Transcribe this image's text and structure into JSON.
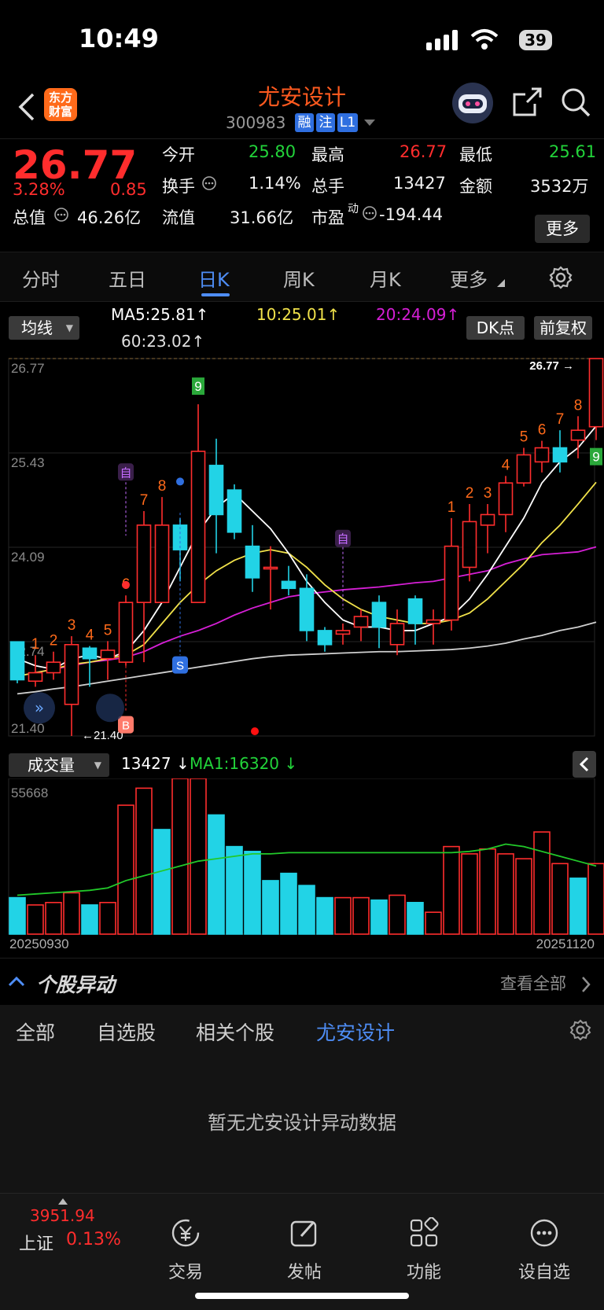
{
  "status_bar": {
    "time": "10:49",
    "battery": "39"
  },
  "header": {
    "title": "尤安设计",
    "code": "300983",
    "tags": [
      "融",
      "注",
      "L1"
    ],
    "brand_logo": "东方财富"
  },
  "quote": {
    "price": "26.77",
    "change_pct": "3.28%",
    "change": "0.85",
    "open_label": "今开",
    "open": "25.80",
    "high_label": "最高",
    "high": "26.77",
    "low_label": "最低",
    "low": "25.61",
    "turnover_label": "换手",
    "turnover": "1.14%",
    "volume_label": "总手",
    "volume": "13427",
    "amount_label": "金额",
    "amount": "3532万",
    "mktcap_label": "总值",
    "mktcap": "46.26亿",
    "float_label": "流值",
    "float_cap": "31.66亿",
    "pe_label": "市盈",
    "pe_sup": "动",
    "pe": "-194.44",
    "more": "更多"
  },
  "tabs": [
    {
      "label": "分时"
    },
    {
      "label": "五日"
    },
    {
      "label": "日K"
    },
    {
      "label": "周K"
    },
    {
      "label": "月K"
    },
    {
      "label": "更多"
    }
  ],
  "active_tab": "日K",
  "ma_bar": {
    "selector": "均线",
    "ma5": "MA5:25.81",
    "ma10": "10:25.01",
    "ma20": "20:24.09",
    "ma60": "60:23.02",
    "dk_button": "DK点",
    "fq_button": "前复权"
  },
  "volume_bar": {
    "selector": "成交量",
    "volume": "13427",
    "ma1": "MA1:16320",
    "start_date": "20250930",
    "end_date": "20251120"
  },
  "yidong": {
    "title": "个股异动",
    "view_all": "查看全部",
    "tabs": [
      "全部",
      "自选股",
      "相关个股",
      "尤安设计"
    ],
    "active": "尤安设计",
    "empty": "暂无尤安设计异动数据"
  },
  "bottom_nav": {
    "index_value": "3951.94",
    "index_name": "上证",
    "index_pct": "0.13%",
    "items": [
      "交易",
      "发帖",
      "功能",
      "设自选"
    ]
  },
  "colors": {
    "up": "#ff2d2d",
    "down": "#22d3e6",
    "accent": "#4e8df5",
    "brand": "#ff5a1f"
  },
  "chart_data": {
    "type": "candlestick",
    "y_ticks": [
      "26.77",
      "25.43",
      "24.09",
      "22.74",
      "21.40"
    ],
    "ylim": [
      21.4,
      26.77
    ],
    "last_price_label": "26.77",
    "low_marker_label": "21.40",
    "candles": [
      {
        "o": 22.74,
        "h": 22.74,
        "l": 22.15,
        "c": 22.2
      },
      {
        "o": 22.18,
        "h": 22.55,
        "l": 22.1,
        "c": 22.3
      },
      {
        "o": 22.3,
        "h": 22.6,
        "l": 22.2,
        "c": 22.45
      },
      {
        "o": 21.85,
        "h": 22.82,
        "l": 21.4,
        "c": 22.7
      },
      {
        "o": 22.65,
        "h": 22.68,
        "l": 22.1,
        "c": 22.5
      },
      {
        "o": 22.5,
        "h": 22.75,
        "l": 22.2,
        "c": 22.62
      },
      {
        "o": 22.45,
        "h": 23.4,
        "l": 22.4,
        "c": 23.3
      },
      {
        "o": 23.3,
        "h": 24.6,
        "l": 22.45,
        "c": 24.4
      },
      {
        "o": 23.3,
        "h": 24.8,
        "l": 23.3,
        "c": 24.4
      },
      {
        "o": 24.4,
        "h": 24.5,
        "l": 23.6,
        "c": 24.05
      },
      {
        "o": 23.3,
        "h": 26.12,
        "l": 23.3,
        "c": 25.45
      },
      {
        "o": 25.25,
        "h": 25.63,
        "l": 24.0,
        "c": 24.55
      },
      {
        "o": 24.9,
        "h": 24.98,
        "l": 24.2,
        "c": 24.3
      },
      {
        "o": 24.1,
        "h": 24.4,
        "l": 23.45,
        "c": 23.65
      },
      {
        "o": 23.78,
        "h": 24.1,
        "l": 23.2,
        "c": 23.8
      },
      {
        "o": 23.6,
        "h": 23.82,
        "l": 23.4,
        "c": 23.5
      },
      {
        "o": 23.5,
        "h": 23.7,
        "l": 22.75,
        "c": 22.9
      },
      {
        "o": 22.9,
        "h": 22.95,
        "l": 22.6,
        "c": 22.7
      },
      {
        "o": 22.85,
        "h": 23.0,
        "l": 22.7,
        "c": 22.9
      },
      {
        "o": 22.95,
        "h": 23.2,
        "l": 22.75,
        "c": 23.1
      },
      {
        "o": 23.3,
        "h": 23.4,
        "l": 22.65,
        "c": 22.95
      },
      {
        "o": 22.7,
        "h": 23.2,
        "l": 22.55,
        "c": 23.0
      },
      {
        "o": 23.35,
        "h": 23.4,
        "l": 22.7,
        "c": 23.0
      },
      {
        "o": 23.0,
        "h": 23.2,
        "l": 22.7,
        "c": 23.05
      },
      {
        "o": 23.05,
        "h": 24.5,
        "l": 22.9,
        "c": 24.1
      },
      {
        "o": 23.8,
        "h": 24.7,
        "l": 23.6,
        "c": 24.45
      },
      {
        "o": 24.4,
        "h": 24.7,
        "l": 24.0,
        "c": 24.55
      },
      {
        "o": 24.55,
        "h": 25.1,
        "l": 24.3,
        "c": 25.0
      },
      {
        "o": 25.0,
        "h": 25.5,
        "l": 24.95,
        "c": 25.4
      },
      {
        "o": 25.3,
        "h": 25.6,
        "l": 25.15,
        "c": 25.5
      },
      {
        "o": 25.5,
        "h": 25.75,
        "l": 25.15,
        "c": 25.3
      },
      {
        "o": 25.61,
        "h": 25.95,
        "l": 25.35,
        "c": 25.75
      },
      {
        "o": 25.8,
        "h": 26.77,
        "l": 25.61,
        "c": 26.77
      }
    ],
    "volumes": [
      15,
      12,
      13,
      17,
      12,
      13,
      53,
      60,
      43,
      64,
      64,
      49,
      36,
      34,
      22,
      25,
      20,
      15,
      15,
      15,
      14,
      16,
      13,
      9,
      36,
      33,
      35,
      33,
      31,
      42,
      29,
      23,
      29
    ],
    "volume_ma": [
      16,
      16.5,
      17,
      17.5,
      18,
      19,
      22,
      24,
      26,
      28,
      30,
      31,
      32,
      33,
      33,
      33.5,
      33.5,
      33.5,
      33.5,
      33.5,
      33.5,
      33.5,
      33.5,
      33.5,
      33.5,
      34,
      35,
      37,
      36,
      34,
      32,
      30,
      28
    ],
    "vol_top_label": "55668",
    "volume_up_flags": [
      0,
      1,
      1,
      1,
      0,
      1,
      1,
      1,
      0,
      1,
      1,
      0,
      0,
      0,
      0,
      0,
      0,
      0,
      1,
      1,
      0,
      1,
      0,
      1,
      1,
      1,
      1,
      1,
      1,
      1,
      1,
      0,
      1
    ],
    "ma5": [
      22.5,
      22.4,
      22.35,
      22.5,
      22.55,
      22.5,
      22.6,
      22.9,
      23.3,
      23.8,
      24.3,
      24.65,
      24.85,
      24.6,
      24.35,
      24.0,
      23.6,
      23.3,
      23.05,
      22.95,
      22.95,
      22.9,
      22.9,
      23.0,
      23.1,
      23.35,
      23.7,
      24.1,
      24.5,
      25.0,
      25.3,
      25.5,
      25.81
    ],
    "ma10": [
      22.25,
      22.3,
      22.35,
      22.42,
      22.45,
      22.5,
      22.55,
      22.7,
      23.0,
      23.3,
      23.55,
      23.75,
      23.9,
      24.0,
      24.05,
      24.0,
      23.8,
      23.55,
      23.35,
      23.2,
      23.1,
      23.05,
      23.0,
      23.0,
      23.05,
      23.15,
      23.35,
      23.6,
      23.85,
      24.15,
      24.4,
      24.7,
      25.01
    ],
    "ma20": [
      22.25,
      22.3,
      22.35,
      22.4,
      22.45,
      22.48,
      22.52,
      22.6,
      22.72,
      22.82,
      22.9,
      23.0,
      23.12,
      23.22,
      23.3,
      23.38,
      23.42,
      23.45,
      23.48,
      23.5,
      23.52,
      23.55,
      23.58,
      23.6,
      23.65,
      23.7,
      23.75,
      23.85,
      23.92,
      23.98,
      24.0,
      24.02,
      24.09
    ],
    "ma60": [
      22.0,
      22.03,
      22.07,
      22.1,
      22.14,
      22.18,
      22.22,
      22.26,
      22.3,
      22.34,
      22.38,
      22.42,
      22.46,
      22.5,
      22.53,
      22.55,
      22.56,
      22.57,
      22.58,
      22.59,
      22.6,
      22.6,
      22.61,
      22.62,
      22.63,
      22.65,
      22.68,
      22.72,
      22.78,
      22.83,
      22.9,
      22.95,
      23.02
    ],
    "nine_turn_labels": [
      {
        "i": 1,
        "t": "1"
      },
      {
        "i": 2,
        "t": "2"
      },
      {
        "i": 3,
        "t": "3"
      },
      {
        "i": 4,
        "t": "4"
      },
      {
        "i": 5,
        "t": "5"
      },
      {
        "i": 6,
        "t": "6"
      },
      {
        "i": 7,
        "t": "7"
      },
      {
        "i": 8,
        "t": "8"
      },
      {
        "i": 10,
        "t": "9",
        "box": true
      },
      {
        "i": 24,
        "t": "1"
      },
      {
        "i": 25,
        "t": "2"
      },
      {
        "i": 26,
        "t": "3"
      },
      {
        "i": 27,
        "t": "4"
      },
      {
        "i": 28,
        "t": "5"
      },
      {
        "i": 29,
        "t": "6"
      },
      {
        "i": 30,
        "t": "7"
      },
      {
        "i": 31,
        "t": "8"
      },
      {
        "i": 32,
        "t": "9",
        "box": true
      }
    ],
    "markers": {
      "zi": "自",
      "b": "B",
      "s": "S"
    }
  }
}
